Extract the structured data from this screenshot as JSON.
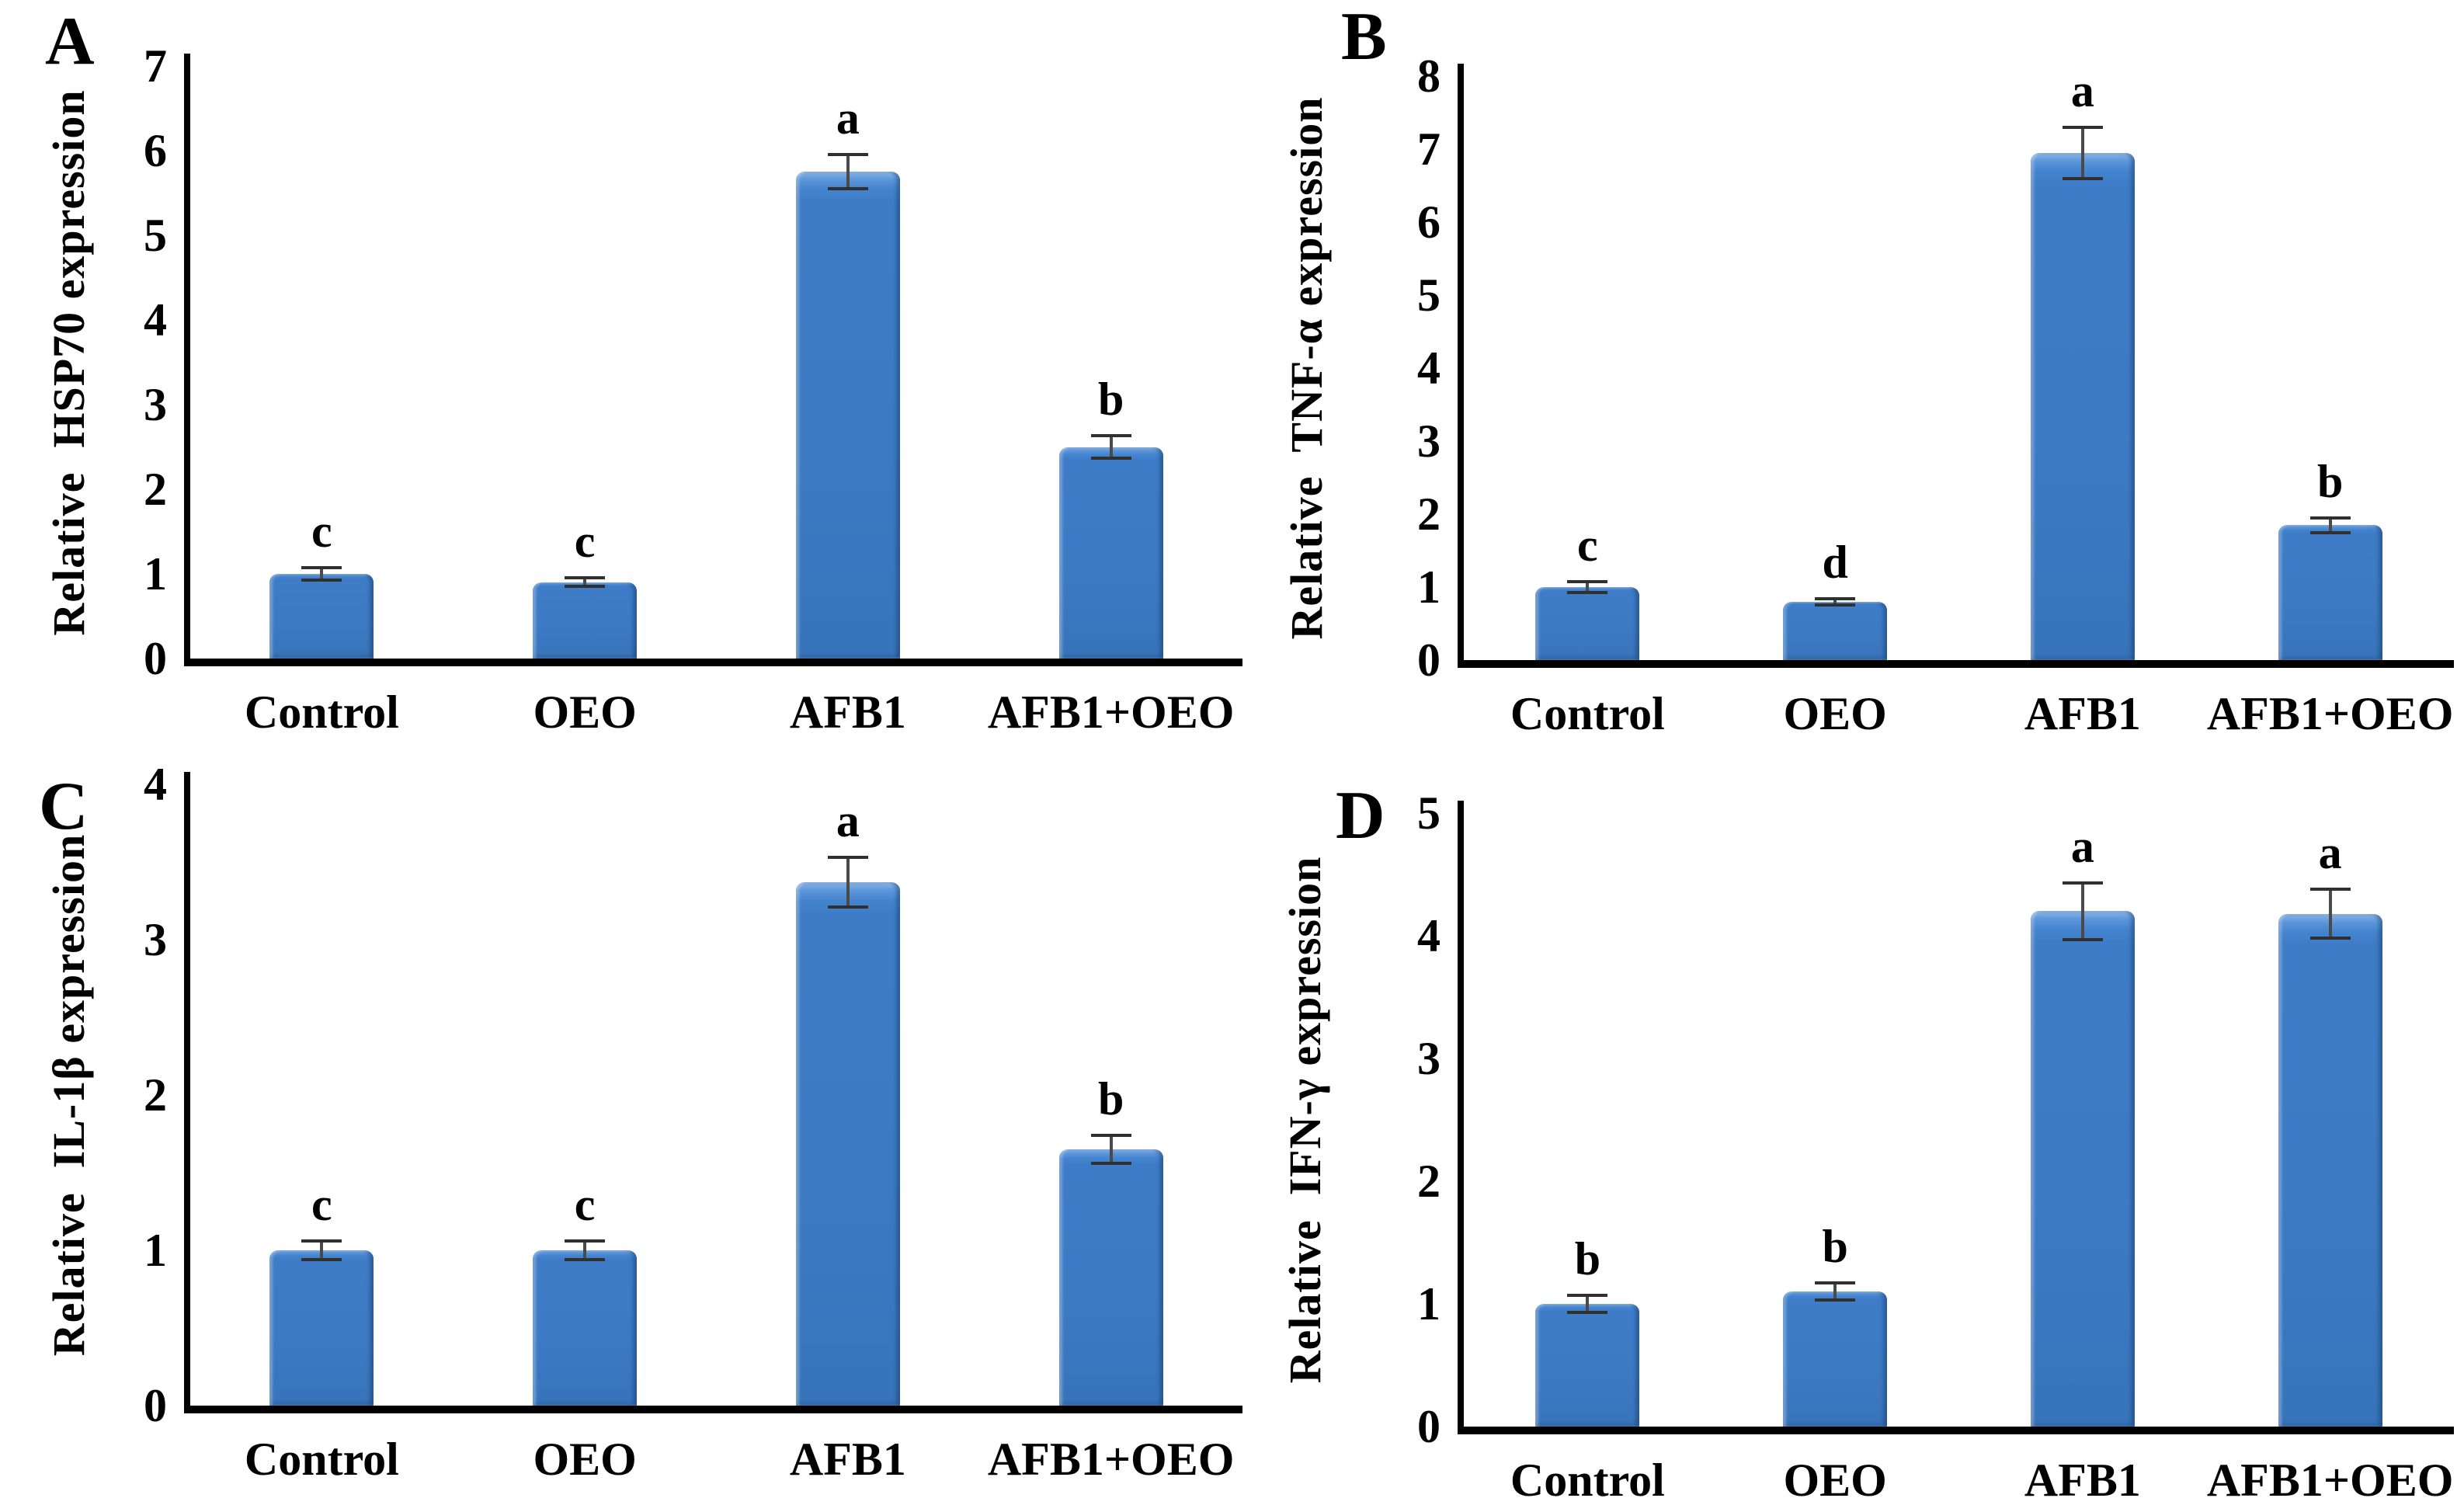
{
  "figure": {
    "bar_color": "#3d7ac4",
    "bar_highlight": "#8cb7e8",
    "bar_shadow": "#2e62a6",
    "error_bar_color": "#4a4a4a",
    "axis_color": "#000000",
    "background": "#ffffff"
  },
  "chart_data": [
    {
      "type": "bar",
      "panel": "A",
      "ylabel": "Relative  HSP70 expression",
      "xlabel": "",
      "ylim": [
        0,
        7
      ],
      "yticks": [
        0,
        1,
        2,
        3,
        4,
        5,
        6,
        7
      ],
      "categories": [
        "Control",
        "OEO",
        "AFB1",
        "AFB1+OEO"
      ],
      "values": [
        1.0,
        0.9,
        5.75,
        2.5
      ],
      "errors": [
        0.07,
        0.05,
        0.2,
        0.13
      ],
      "sig_letters": [
        "c",
        "c",
        "a",
        "b"
      ],
      "grid": "off",
      "legend": "none"
    },
    {
      "type": "bar",
      "panel": "B",
      "ylabel": "Relative  TNF-α expression",
      "xlabel": "",
      "ylim": [
        0,
        8
      ],
      "yticks": [
        0,
        1,
        2,
        3,
        4,
        5,
        6,
        7,
        8
      ],
      "categories": [
        "Control",
        "OEO",
        "AFB1",
        "AFB1+OEO"
      ],
      "values": [
        1.0,
        0.8,
        6.95,
        1.85
      ],
      "errors": [
        0.07,
        0.04,
        0.35,
        0.1
      ],
      "sig_letters": [
        "c",
        "d",
        "a",
        "b"
      ],
      "grid": "off",
      "legend": "none"
    },
    {
      "type": "bar",
      "panel": "C",
      "ylabel": "Relative  IL-1β expression",
      "xlabel": "",
      "ylim": [
        0,
        4
      ],
      "yticks": [
        0,
        1,
        2,
        3,
        4
      ],
      "categories": [
        "Control",
        "OEO",
        "AFB1",
        "AFB1+OEO"
      ],
      "values": [
        1.0,
        1.0,
        3.37,
        1.65
      ],
      "errors": [
        0.06,
        0.06,
        0.16,
        0.09
      ],
      "sig_letters": [
        "c",
        "c",
        "a",
        "b"
      ],
      "grid": "off",
      "legend": "none"
    },
    {
      "type": "bar",
      "panel": "D",
      "ylabel": "Relative  IFN-γ expression",
      "xlabel": "",
      "ylim": [
        0,
        5
      ],
      "yticks": [
        0,
        1,
        2,
        3,
        4,
        5
      ],
      "categories": [
        "Control",
        "OEO",
        "AFB1",
        "AFB1+OEO"
      ],
      "values": [
        1.0,
        1.1,
        4.2,
        4.18
      ],
      "errors": [
        0.07,
        0.07,
        0.23,
        0.2
      ],
      "sig_letters": [
        "b",
        "b",
        "a",
        "a"
      ],
      "grid": "off",
      "legend": "none"
    }
  ]
}
